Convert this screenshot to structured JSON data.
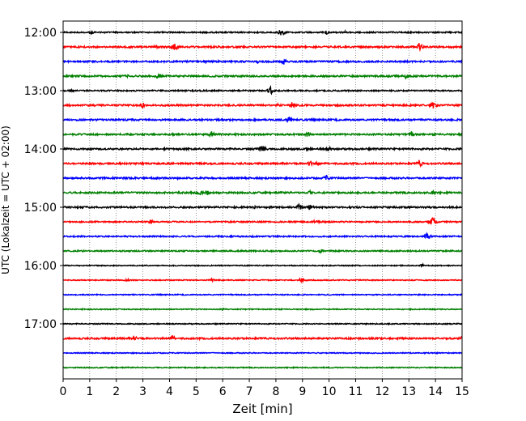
{
  "chart_data": {
    "type": "line",
    "title": "",
    "xlabel": "Zeit  [min]",
    "ylabel": "UTC (Lokalzeit = UTC + 02:00)",
    "xlim": [
      0,
      15
    ],
    "x_ticks": [
      0,
      1,
      2,
      3,
      4,
      5,
      6,
      7,
      8,
      9,
      10,
      11,
      12,
      13,
      14,
      15
    ],
    "x_tick_labels": [
      "0",
      "1",
      "2",
      "3",
      "4",
      "5",
      "6",
      "7",
      "8",
      "9",
      "10",
      "11",
      "12",
      "13",
      "14",
      "15"
    ],
    "y_tick_labels": [
      "12:00",
      "13:00",
      "14:00",
      "15:00",
      "16:00",
      "17:00"
    ],
    "trace_interval_min": 15,
    "grid": "vertical-dotted",
    "colors": [
      "#000000",
      "#ff0000",
      "#0000ff",
      "#008000"
    ],
    "traces": [
      {
        "time": "12:00",
        "color": "#000000",
        "noise": 0.8,
        "events": [
          [
            1.1,
            2.5
          ],
          [
            8.2,
            5
          ],
          [
            9.9,
            2.5
          ],
          [
            10.6,
            2
          ]
        ]
      },
      {
        "time": "12:15",
        "color": "#ff0000",
        "noise": 1.0,
        "events": [
          [
            3.5,
            3
          ],
          [
            4.2,
            5
          ],
          [
            13.4,
            6
          ]
        ]
      },
      {
        "time": "12:30",
        "color": "#0000ff",
        "noise": 1.0,
        "events": [
          [
            7.3,
            2.5
          ],
          [
            8.3,
            4
          ]
        ]
      },
      {
        "time": "12:45",
        "color": "#008000",
        "noise": 1.0,
        "events": [
          [
            2.4,
            2
          ],
          [
            3.6,
            5
          ],
          [
            12.9,
            4
          ]
        ]
      },
      {
        "time": "13:00",
        "color": "#000000",
        "noise": 0.8,
        "events": [
          [
            0.3,
            3
          ],
          [
            7.8,
            5
          ]
        ]
      },
      {
        "time": "13:15",
        "color": "#ff0000",
        "noise": 1.0,
        "events": [
          [
            3.0,
            4
          ],
          [
            8.1,
            3
          ],
          [
            8.6,
            4
          ],
          [
            13.9,
            5
          ]
        ]
      },
      {
        "time": "13:30",
        "color": "#0000ff",
        "noise": 1.0,
        "events": [
          [
            6.2,
            2
          ],
          [
            8.5,
            4
          ]
        ]
      },
      {
        "time": "13:45",
        "color": "#008000",
        "noise": 1.0,
        "events": [
          [
            5.6,
            5
          ],
          [
            9.2,
            4
          ],
          [
            13.1,
            4
          ]
        ]
      },
      {
        "time": "14:00",
        "color": "#000000",
        "noise": 1.0,
        "events": [
          [
            7.5,
            6
          ],
          [
            9.2,
            3
          ],
          [
            10.0,
            3
          ]
        ]
      },
      {
        "time": "14:15",
        "color": "#ff0000",
        "noise": 1.0,
        "events": [
          [
            3.8,
            3
          ],
          [
            9.3,
            4
          ],
          [
            9.6,
            3
          ],
          [
            13.4,
            5
          ]
        ]
      },
      {
        "time": "14:30",
        "color": "#0000ff",
        "noise": 1.0,
        "events": [
          [
            4.3,
            2
          ],
          [
            9.9,
            4
          ]
        ]
      },
      {
        "time": "14:45",
        "color": "#008000",
        "noise": 1.0,
        "events": [
          [
            5.1,
            5
          ],
          [
            5.4,
            4
          ],
          [
            9.3,
            3
          ],
          [
            13.9,
            3
          ]
        ]
      },
      {
        "time": "15:00",
        "color": "#000000",
        "noise": 1.0,
        "events": [
          [
            7.2,
            2
          ],
          [
            8.9,
            5
          ],
          [
            9.3,
            4
          ]
        ]
      },
      {
        "time": "15:15",
        "color": "#ff0000",
        "noise": 0.8,
        "events": [
          [
            3.3,
            3
          ],
          [
            9.5,
            3
          ],
          [
            13.9,
            6
          ]
        ]
      },
      {
        "time": "15:30",
        "color": "#0000ff",
        "noise": 0.8,
        "events": [
          [
            13.7,
            5
          ]
        ]
      },
      {
        "time": "15:45",
        "color": "#008000",
        "noise": 0.8,
        "events": [
          [
            9.7,
            3
          ]
        ]
      },
      {
        "time": "16:00",
        "color": "#000000",
        "noise": 0.6,
        "events": [
          [
            13.5,
            2
          ]
        ]
      },
      {
        "time": "16:15",
        "color": "#ff0000",
        "noise": 0.6,
        "events": [
          [
            2.4,
            2
          ],
          [
            5.6,
            2
          ],
          [
            9.0,
            4
          ]
        ]
      },
      {
        "time": "16:30",
        "color": "#0000ff",
        "noise": 0.6,
        "events": []
      },
      {
        "time": "16:45",
        "color": "#008000",
        "noise": 0.6,
        "events": [
          [
            6.0,
            1.5
          ]
        ]
      },
      {
        "time": "17:00",
        "color": "#000000",
        "noise": 0.6,
        "events": []
      },
      {
        "time": "17:15",
        "color": "#ff0000",
        "noise": 1.0,
        "events": [
          [
            2.7,
            3
          ],
          [
            4.1,
            4
          ],
          [
            15.0,
            3
          ]
        ]
      },
      {
        "time": "17:30",
        "color": "#0000ff",
        "noise": 0.6,
        "events": []
      },
      {
        "time": "17:45",
        "color": "#008000",
        "noise": 0.6,
        "events": []
      }
    ]
  }
}
